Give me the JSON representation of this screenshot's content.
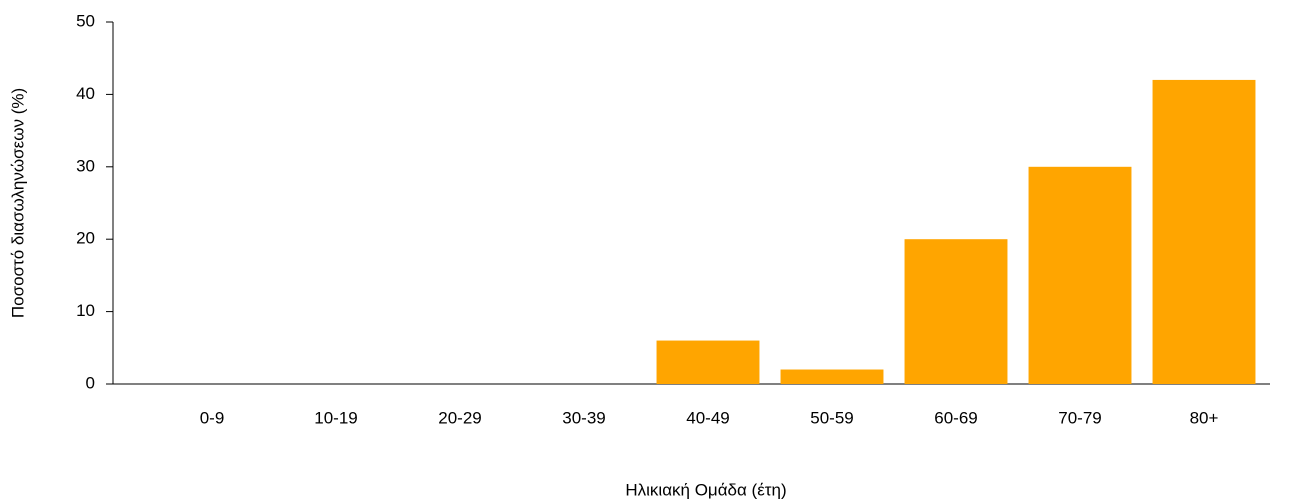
{
  "chart_data": {
    "type": "bar",
    "x_label": "Ηλικιακή Ομάδα (έτη)",
    "y_label": "Ποσοστό διασωληνώσεων (%)",
    "categories": [
      "0-9",
      "10-19",
      "20-29",
      "30-39",
      "40-49",
      "50-59",
      "60-69",
      "70-79",
      "80+"
    ],
    "values": [
      0,
      0,
      0,
      0,
      6,
      2,
      20,
      30,
      42
    ],
    "color": "#ffa500",
    "ylim": [
      0,
      50
    ],
    "yticks": [
      0,
      10,
      20,
      30,
      40,
      50
    ],
    "grid": false
  }
}
